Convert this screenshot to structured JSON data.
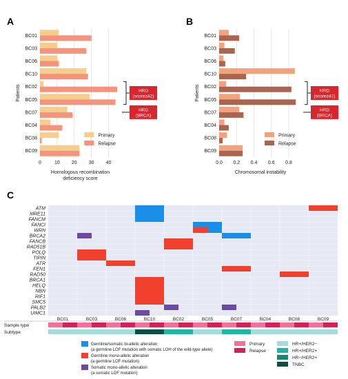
{
  "panel_labels": [
    "A",
    "B",
    "C"
  ],
  "colors": {
    "primary_a": "#f6cd8c",
    "relapse_a": "#f4937e",
    "primary_b": "#f2a37e",
    "relapse_b": "#a9654f",
    "hrd_box": "#d8262e",
    "grid": "#e6e6e6",
    "heat_bg": "#e6e8f4",
    "biallelic": "#1a8fe8",
    "germline": "#f2402f",
    "somatic": "#6a4aa3",
    "sample_primary": "#f46f9a",
    "sample_relapse": "#d62158",
    "sub_hr_her2neg": "#a5dcd8",
    "sub_hr_her2pos": "#1fb6a8",
    "sub_hrneg_her2pos": "#0c8a7d",
    "sub_tnbc": "#0a4f44"
  },
  "chart_data": [
    {
      "type": "bar",
      "orientation": "horizontal",
      "panel": "A",
      "categories": [
        "BC01",
        "BC03",
        "BC06",
        "BC10",
        "BC02",
        "BC05",
        "BC07",
        "BC04",
        "BC08",
        "BC09"
      ],
      "series": [
        {
          "name": "Primary",
          "values": [
            11,
            10,
            10,
            27,
            2,
            29,
            16,
            6,
            11,
            23
          ]
        },
        {
          "name": "Relapse",
          "values": [
            30,
            27,
            11,
            28,
            45,
            44,
            19,
            13,
            1,
            23
          ]
        }
      ],
      "ylabel": "Patients",
      "xlabel_lines": [
        "Homologous recombination",
        "deficiency score"
      ],
      "xlim": [
        0,
        47
      ],
      "xticks": [
        "0",
        "10",
        "20",
        "30",
        "40"
      ],
      "legend": "bottom-right",
      "annotations": [
        {
          "lines": [
            "HRD",
            "(score≥42)"
          ]
        },
        {
          "lines": [
            "HRD",
            "(BRCA)"
          ]
        }
      ]
    },
    {
      "type": "bar",
      "orientation": "horizontal",
      "panel": "B",
      "categories": [
        "BC01",
        "BC03",
        "BC06",
        "BC10",
        "BC02",
        "BC05",
        "BC07",
        "BC04",
        "BC08",
        "BC09"
      ],
      "series": [
        {
          "name": "Primary",
          "values": [
            0.11,
            0.06,
            0.05,
            0.87,
            0.08,
            0.24,
            0.23,
            0.06,
            0.09,
            0.27
          ]
        },
        {
          "name": "Relapse",
          "values": [
            0.23,
            0.18,
            0.07,
            0.31,
            0.83,
            0.88,
            0.28,
            0.11,
            0.04,
            0.27
          ]
        }
      ],
      "ylabel": "Patients",
      "xlabel": "Chromosomal instability",
      "xlim": [
        0,
        0.95
      ],
      "xticks": [
        "0.0",
        "0.2",
        "0.4",
        "0.6",
        "0.8"
      ],
      "legend": "bottom-right",
      "annotations": [
        {
          "lines": [
            "HRD",
            "(score≥42)"
          ]
        },
        {
          "lines": [
            "HRD",
            "(BRCA)"
          ]
        }
      ]
    },
    {
      "type": "heatmap",
      "panel": "C",
      "patients": [
        "BC01",
        "BC03",
        "BC06",
        "BC10",
        "BC02",
        "BC05",
        "BC07",
        "BC04",
        "BC08",
        "BC09"
      ],
      "genes": [
        "ATM",
        "MRE11",
        "FANCM",
        "FANCI",
        "WRN",
        "BRCA2",
        "FANCB",
        "RAD51B",
        "POLQ",
        "TIPIN",
        "ATR",
        "FEN1",
        "RAD50",
        "BRCA1",
        "HELQ",
        "NBN",
        "RIF1",
        "SMC5",
        "PALB2",
        "UIMC1"
      ],
      "cells": [
        {
          "gene": "ATM",
          "patient": "BC10",
          "sample": "both",
          "type": "biallelic"
        },
        {
          "gene": "MRE11",
          "patient": "BC10",
          "sample": "both",
          "type": "biallelic"
        },
        {
          "gene": "FANCM",
          "patient": "BC10",
          "sample": "both",
          "type": "biallelic"
        },
        {
          "gene": "ATM",
          "patient": "BC09",
          "sample": "both",
          "type": "germline"
        },
        {
          "gene": "FANCI",
          "patient": "BC05",
          "sample": "both",
          "type": "biallelic"
        },
        {
          "gene": "WRN",
          "patient": "BC05",
          "sample": "primary",
          "type": "germline"
        },
        {
          "gene": "WRN",
          "patient": "BC05",
          "sample": "relapse",
          "type": "biallelic"
        },
        {
          "gene": "BRCA2",
          "patient": "BC03",
          "sample": "primary",
          "type": "somatic"
        },
        {
          "gene": "BRCA2",
          "patient": "BC07",
          "sample": "both",
          "type": "biallelic"
        },
        {
          "gene": "FANCB",
          "patient": "BC02",
          "sample": "both",
          "type": "germline"
        },
        {
          "gene": "RAD51B",
          "patient": "BC02",
          "sample": "both",
          "type": "germline"
        },
        {
          "gene": "POLQ",
          "patient": "BC03",
          "sample": "both",
          "type": "germline"
        },
        {
          "gene": "TIPIN",
          "patient": "BC03",
          "sample": "both",
          "type": "germline"
        },
        {
          "gene": "ATR",
          "patient": "BC06",
          "sample": "both",
          "type": "germline"
        },
        {
          "gene": "FEN1",
          "patient": "BC07",
          "sample": "both",
          "type": "germline"
        },
        {
          "gene": "RAD50",
          "patient": "BC08",
          "sample": "both",
          "type": "germline"
        },
        {
          "gene": "BRCA1",
          "patient": "BC10",
          "sample": "both",
          "type": "germline"
        },
        {
          "gene": "HELQ",
          "patient": "BC10",
          "sample": "both",
          "type": "germline"
        },
        {
          "gene": "NBN",
          "patient": "BC10",
          "sample": "both",
          "type": "germline"
        },
        {
          "gene": "RIF1",
          "patient": "BC10",
          "sample": "both",
          "type": "germline"
        },
        {
          "gene": "SMC5",
          "patient": "BC10",
          "sample": "both",
          "type": "germline"
        },
        {
          "gene": "PALB2",
          "patient": "BC02",
          "sample": "primary",
          "type": "somatic"
        },
        {
          "gene": "PALB2",
          "patient": "BC07",
          "sample": "primary",
          "type": "somatic"
        },
        {
          "gene": "UIMC1",
          "patient": "BC10",
          "sample": "primary",
          "type": "somatic"
        }
      ],
      "sample_type_label": "Sample type",
      "subtype_label": "Subtype",
      "subtypes": [
        "HR+/HER2-",
        "HR+/HER2-",
        "HR+/HER2-",
        "TNBC",
        "HR+/HER2+",
        "HR+/HER2-",
        "HR+/HER2+",
        "HR+/HER2-",
        "HR+/HER2-",
        "HR+/HER2-"
      ],
      "legend": {
        "alterations": [
          {
            "key": "biallelic",
            "lines": [
              "Germline/somatic bi-allelic alteration",
              "(a germline LOF mutation with somatic LOH of the wild-type allele)"
            ]
          },
          {
            "key": "germline",
            "lines": [
              "Germline mono-allelic alteration",
              "(a germline LOF mutation)"
            ]
          },
          {
            "key": "somatic",
            "lines": [
              "Somatic mono-allelic alteration",
              "(a somatic LOF mutation)"
            ]
          }
        ],
        "samples": [
          {
            "key": "sample_primary",
            "label": "Primary"
          },
          {
            "key": "sample_relapse",
            "label": "Relapse"
          }
        ],
        "subtypes": [
          {
            "key": "sub_hr_her2neg",
            "label": "HR+/HER2−"
          },
          {
            "key": "sub_hr_her2pos",
            "label": "HR+/HER2+"
          },
          {
            "key": "sub_hrneg_her2pos",
            "label": "HR−/HER2+"
          },
          {
            "key": "sub_tnbc",
            "label": "TNBC"
          }
        ]
      }
    }
  ]
}
